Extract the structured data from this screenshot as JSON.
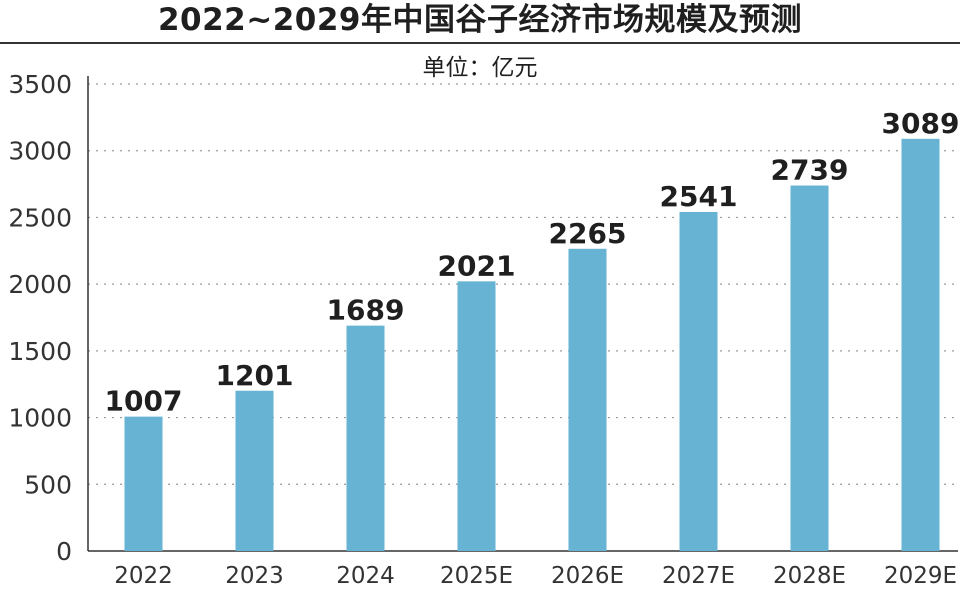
{
  "chart_data": {
    "type": "bar",
    "title": "2022~2029年中国谷子经济市场规模及预测",
    "subtitle": "单位：亿元",
    "categories": [
      "2022",
      "2023",
      "2024",
      "2025E",
      "2026E",
      "2027E",
      "2028E",
      "2029E"
    ],
    "values": [
      1007,
      1201,
      1689,
      2021,
      2265,
      2541,
      2739,
      3089
    ],
    "ylim": [
      0,
      3500
    ],
    "yticks": [
      0,
      500,
      1000,
      1500,
      2000,
      2500,
      3000,
      3500
    ],
    "grid": true,
    "bar_color": "#66b3d4"
  }
}
